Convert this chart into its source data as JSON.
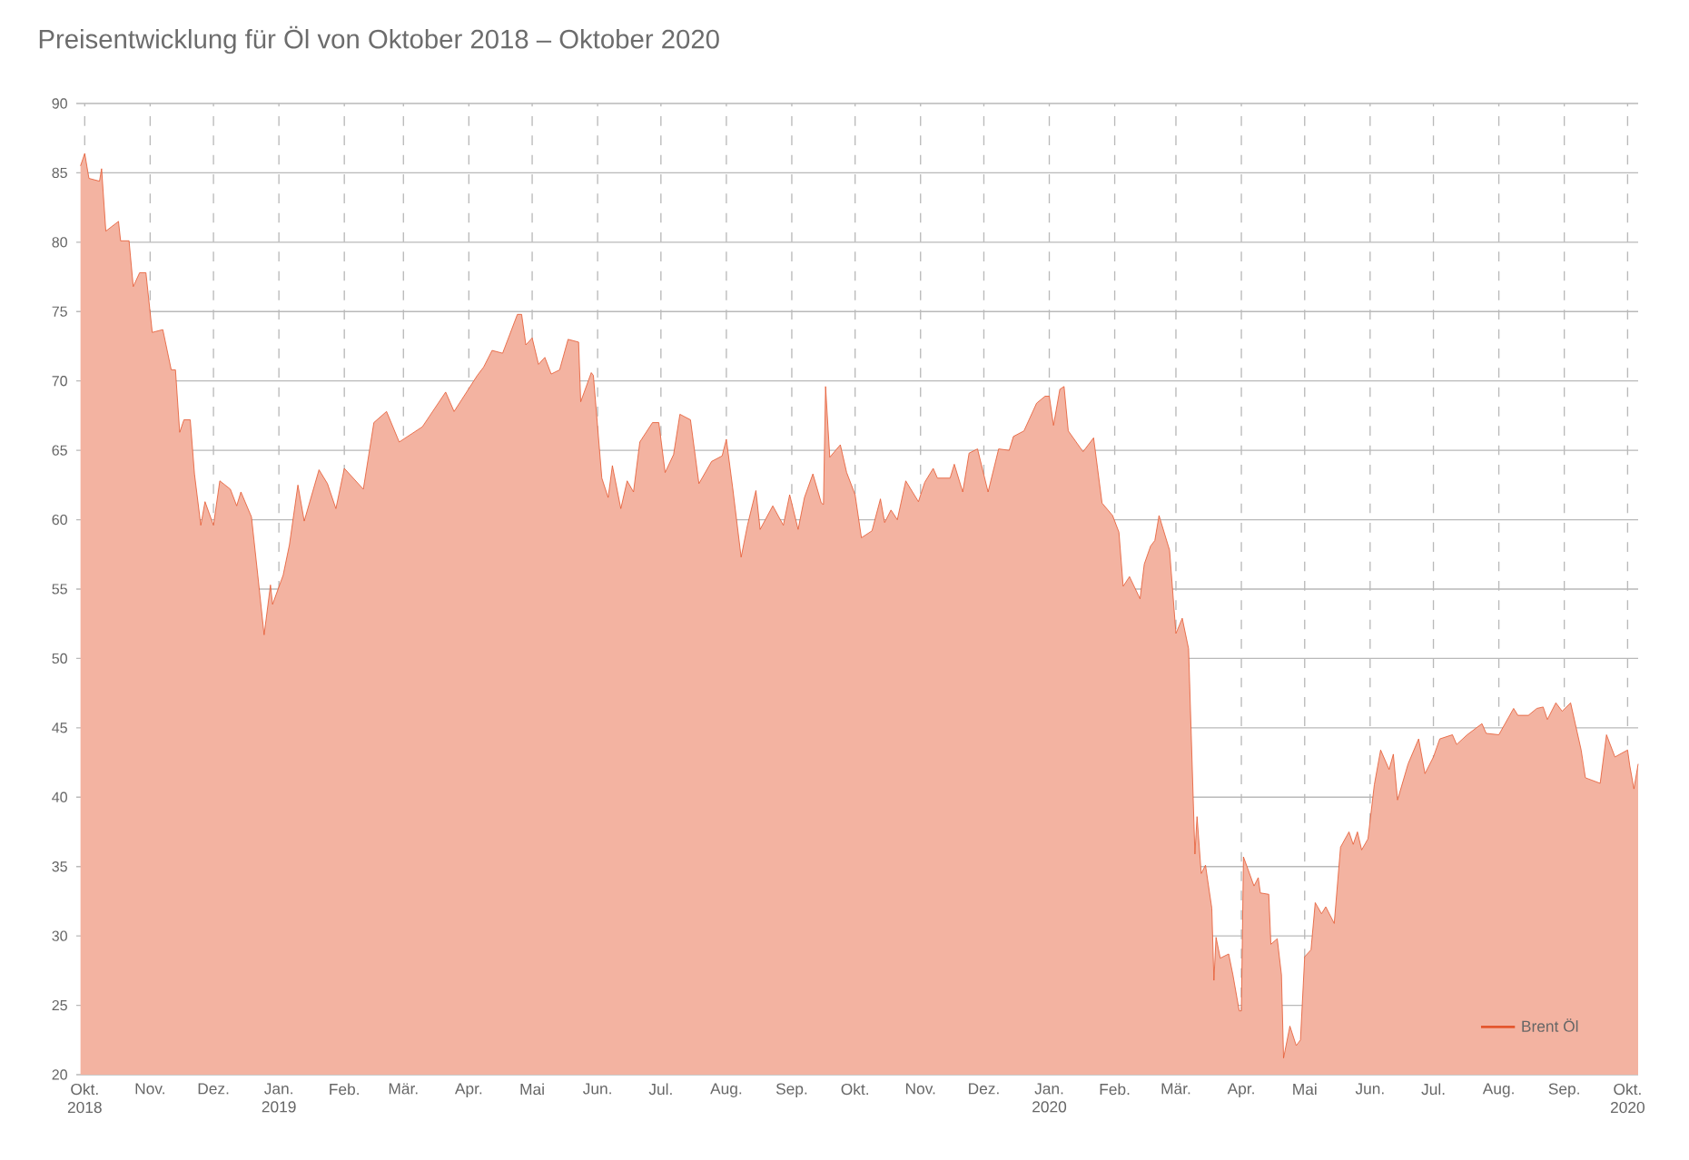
{
  "chart_data": {
    "type": "area",
    "title": "Preisentwicklung für Öl von Oktober 2018 – Oktober 2020",
    "xlim": [
      "2018-09-27",
      "2020-10-06"
    ],
    "ylim": [
      20,
      90
    ],
    "xticks": [
      {
        "value": "2018-10-01",
        "label": "Okt. 2018"
      },
      {
        "value": "2018-11-01",
        "label": "Nov."
      },
      {
        "value": "2018-12-01",
        "label": "Dez."
      },
      {
        "value": "2019-01-01",
        "label": "Jan. 2019"
      },
      {
        "value": "2019-02-01",
        "label": "Feb."
      },
      {
        "value": "2019-03-01",
        "label": "Mär."
      },
      {
        "value": "2019-04-01",
        "label": "Apr."
      },
      {
        "value": "2019-05-01",
        "label": "Mai"
      },
      {
        "value": "2019-06-01",
        "label": "Jun."
      },
      {
        "value": "2019-07-01",
        "label": "Jul."
      },
      {
        "value": "2019-08-01",
        "label": "Aug."
      },
      {
        "value": "2019-09-01",
        "label": "Sep."
      },
      {
        "value": "2019-10-01",
        "label": "Okt."
      },
      {
        "value": "2019-11-01",
        "label": "Nov."
      },
      {
        "value": "2019-12-01",
        "label": "Dez."
      },
      {
        "value": "2020-01-01",
        "label": "Jan. 2020"
      },
      {
        "value": "2020-02-01",
        "label": "Feb."
      },
      {
        "value": "2020-03-01",
        "label": "Mär."
      },
      {
        "value": "2020-04-01",
        "label": "Apr."
      },
      {
        "value": "2020-05-01",
        "label": "Mai"
      },
      {
        "value": "2020-06-01",
        "label": "Jun."
      },
      {
        "value": "2020-07-01",
        "label": "Jul."
      },
      {
        "value": "2020-08-01",
        "label": "Aug."
      },
      {
        "value": "2020-09-01",
        "label": "Sep."
      },
      {
        "value": "2020-10-01",
        "label": "Okt. 2020"
      }
    ],
    "yticks": [
      20,
      25,
      30,
      35,
      40,
      45,
      50,
      55,
      60,
      65,
      70,
      75,
      80,
      85,
      90
    ],
    "grid": true,
    "legend": "bottom right",
    "x": [
      "2018-09-29",
      "2018-10-01",
      "2018-10-03",
      "2018-10-08",
      "2018-10-09",
      "2018-10-11",
      "2018-10-17",
      "2018-10-18",
      "2018-10-22",
      "2018-10-24",
      "2018-10-27",
      "2018-10-30",
      "2018-11-02",
      "2018-11-07",
      "2018-11-11",
      "2018-11-13",
      "2018-11-15",
      "2018-11-17",
      "2018-11-20",
      "2018-11-22",
      "2018-11-25",
      "2018-11-27",
      "2018-12-01",
      "2018-12-04",
      "2018-12-09",
      "2018-12-12",
      "2018-12-14",
      "2018-12-19",
      "2018-12-22",
      "2018-12-25",
      "2018-12-28",
      "2018-12-29",
      "2019-01-03",
      "2019-01-06",
      "2019-01-10",
      "2019-01-13",
      "2019-01-20",
      "2019-01-24",
      "2019-01-28",
      "2019-02-01",
      "2019-02-10",
      "2019-02-15",
      "2019-02-21",
      "2019-02-27",
      "2019-03-10",
      "2019-03-21",
      "2019-03-25",
      "2019-04-05",
      "2019-04-08",
      "2019-04-12",
      "2019-04-17",
      "2019-04-24",
      "2019-04-26",
      "2019-04-28",
      "2019-05-01",
      "2019-05-04",
      "2019-05-07",
      "2019-05-10",
      "2019-05-14",
      "2019-05-18",
      "2019-05-23",
      "2019-05-24",
      "2019-05-29",
      "2019-05-30",
      "2019-06-03",
      "2019-06-06",
      "2019-06-08",
      "2019-06-12",
      "2019-06-15",
      "2019-06-18",
      "2019-06-21",
      "2019-06-27",
      "2019-06-30",
      "2019-07-03",
      "2019-07-07",
      "2019-07-10",
      "2019-07-15",
      "2019-07-19",
      "2019-07-25",
      "2019-07-30",
      "2019-08-01",
      "2019-08-04",
      "2019-08-08",
      "2019-08-11",
      "2019-08-15",
      "2019-08-17",
      "2019-08-23",
      "2019-08-28",
      "2019-08-31",
      "2019-09-04",
      "2019-09-07",
      "2019-09-11",
      "2019-09-15",
      "2019-09-16",
      "2019-09-17",
      "2019-09-19",
      "2019-09-24",
      "2019-09-27",
      "2019-10-01",
      "2019-10-04",
      "2019-10-09",
      "2019-10-13",
      "2019-10-15",
      "2019-10-18",
      "2019-10-21",
      "2019-10-25",
      "2019-10-31",
      "2019-11-03",
      "2019-11-07",
      "2019-11-09",
      "2019-11-15",
      "2019-11-17",
      "2019-11-21",
      "2019-11-24",
      "2019-11-28",
      "2019-12-03",
      "2019-12-08",
      "2019-12-13",
      "2019-12-15",
      "2019-12-20",
      "2019-12-26",
      "2019-12-30",
      "2020-01-01",
      "2020-01-03",
      "2020-01-06",
      "2020-01-08",
      "2020-01-10",
      "2020-01-17",
      "2020-01-22",
      "2020-01-26",
      "2020-01-31",
      "2020-02-03",
      "2020-02-05",
      "2020-02-08",
      "2020-02-13",
      "2020-02-15",
      "2020-02-18",
      "2020-02-20",
      "2020-02-22",
      "2020-02-27",
      "2020-03-01",
      "2020-03-04",
      "2020-03-07",
      "2020-03-10",
      "2020-03-11",
      "2020-03-13",
      "2020-03-15",
      "2020-03-18",
      "2020-03-19",
      "2020-03-20",
      "2020-03-22",
      "2020-03-26",
      "2020-03-28",
      "2020-03-31",
      "2020-04-01",
      "2020-04-02",
      "2020-04-07",
      "2020-04-09",
      "2020-04-10",
      "2020-04-14",
      "2020-04-15",
      "2020-04-18",
      "2020-04-20",
      "2020-04-21",
      "2020-04-24",
      "2020-04-27",
      "2020-04-29",
      "2020-05-01",
      "2020-05-04",
      "2020-05-06",
      "2020-05-09",
      "2020-05-11",
      "2020-05-15",
      "2020-05-18",
      "2020-05-22",
      "2020-05-24",
      "2020-05-26",
      "2020-05-28",
      "2020-05-31",
      "2020-06-03",
      "2020-06-06",
      "2020-06-10",
      "2020-06-12",
      "2020-06-14",
      "2020-06-19",
      "2020-06-24",
      "2020-06-27",
      "2020-07-01",
      "2020-07-04",
      "2020-07-10",
      "2020-07-12",
      "2020-07-17",
      "2020-07-24",
      "2020-07-26",
      "2020-08-01",
      "2020-08-08",
      "2020-08-10",
      "2020-08-15",
      "2020-08-19",
      "2020-08-22",
      "2020-08-24",
      "2020-08-28",
      "2020-08-31",
      "2020-09-04",
      "2020-09-09",
      "2020-09-11",
      "2020-09-18",
      "2020-09-21",
      "2020-09-25",
      "2020-10-01",
      "2020-10-02",
      "2020-10-04",
      "2020-10-06"
    ],
    "series": [
      {
        "name": "Brent Öl",
        "color": "#e4572e",
        "values": [
          85.5,
          86.4,
          84.6,
          84.4,
          85.3,
          80.8,
          81.5,
          80.1,
          80.1,
          76.8,
          77.8,
          77.8,
          73.5,
          73.7,
          70.8,
          70.8,
          66.3,
          67.2,
          67.2,
          63.3,
          59.6,
          61.3,
          59.6,
          62.8,
          62.2,
          61.0,
          62.0,
          60.2,
          56.0,
          51.7,
          55.3,
          53.9,
          56.0,
          58.2,
          62.5,
          59.9,
          63.6,
          62.6,
          60.8,
          63.7,
          62.2,
          67.0,
          67.8,
          65.6,
          66.7,
          69.2,
          67.8,
          70.4,
          71.0,
          72.2,
          72.0,
          74.8,
          74.8,
          72.6,
          73.1,
          71.2,
          71.7,
          70.5,
          70.8,
          73.0,
          72.8,
          68.5,
          70.6,
          70.4,
          63.0,
          61.6,
          63.9,
          60.8,
          62.8,
          62.0,
          65.6,
          67.0,
          67.0,
          63.4,
          64.7,
          67.6,
          67.2,
          62.6,
          64.2,
          64.6,
          65.8,
          62.3,
          57.3,
          59.6,
          62.1,
          59.3,
          61.0,
          59.6,
          61.8,
          59.3,
          61.6,
          63.3,
          61.2,
          61.1,
          69.6,
          64.5,
          65.4,
          63.4,
          61.8,
          58.7,
          59.2,
          61.5,
          59.8,
          60.7,
          60.0,
          62.8,
          61.3,
          62.7,
          63.7,
          63.0,
          63.0,
          64.0,
          62.0,
          64.8,
          65.1,
          62.0,
          65.1,
          65.0,
          66.0,
          66.4,
          68.4,
          68.9,
          68.9,
          66.8,
          69.4,
          69.6,
          66.4,
          64.9,
          65.9,
          61.2,
          60.3,
          59.1,
          55.2,
          55.9,
          54.3,
          56.8,
          58.1,
          58.5,
          60.3,
          57.8,
          51.8,
          52.9,
          50.7,
          35.9,
          38.6,
          34.5,
          35.1,
          32.0,
          26.8,
          29.9,
          28.4,
          28.7,
          27.2,
          24.6,
          24.6,
          35.7,
          33.6,
          34.2,
          33.1,
          33.0,
          29.4,
          29.8,
          27.2,
          21.2,
          23.5,
          22.1,
          22.5,
          28.5,
          29.0,
          32.4,
          31.6,
          32.1,
          30.9,
          36.4,
          37.5,
          36.6,
          37.5,
          36.2,
          37.0,
          40.9,
          43.4,
          42.0,
          43.1,
          39.8,
          42.4,
          44.2,
          41.7,
          42.9,
          44.2,
          44.5,
          43.8,
          44.5,
          45.3,
          44.6,
          44.5,
          46.4,
          45.9,
          45.9,
          46.4,
          46.5,
          45.6,
          46.8,
          46.2,
          46.8,
          43.4,
          41.4,
          41.0,
          44.5,
          42.9,
          43.4,
          42.3,
          40.6,
          42.4
        ]
      }
    ]
  }
}
